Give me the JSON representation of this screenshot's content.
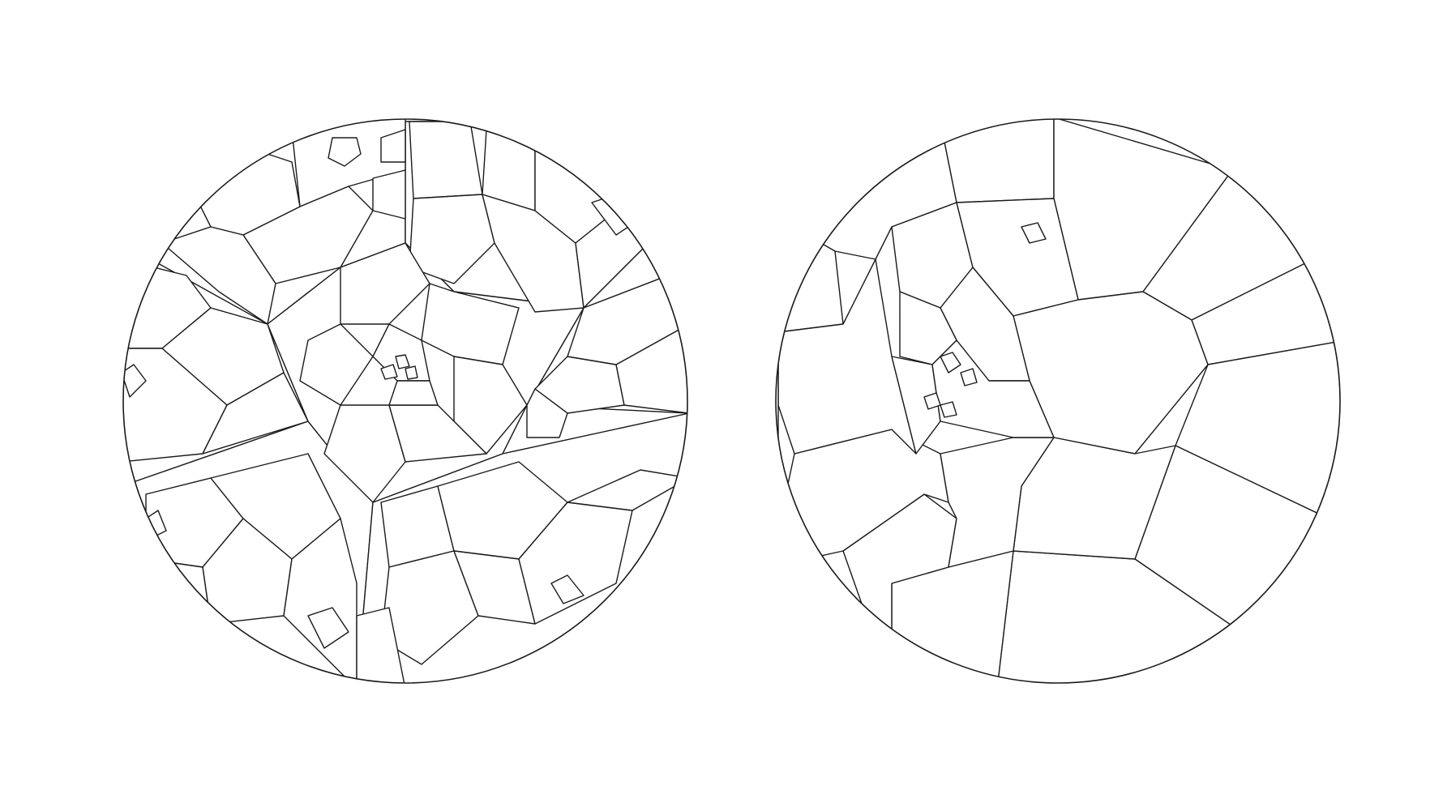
{
  "figure": {
    "panels": [
      {
        "id": "left",
        "description_visible_text": ""
      },
      {
        "id": "right",
        "description_visible_text": ""
      }
    ],
    "colors": {
      "background": "#ffffff",
      "stroke": "#1a1a1a"
    }
  }
}
